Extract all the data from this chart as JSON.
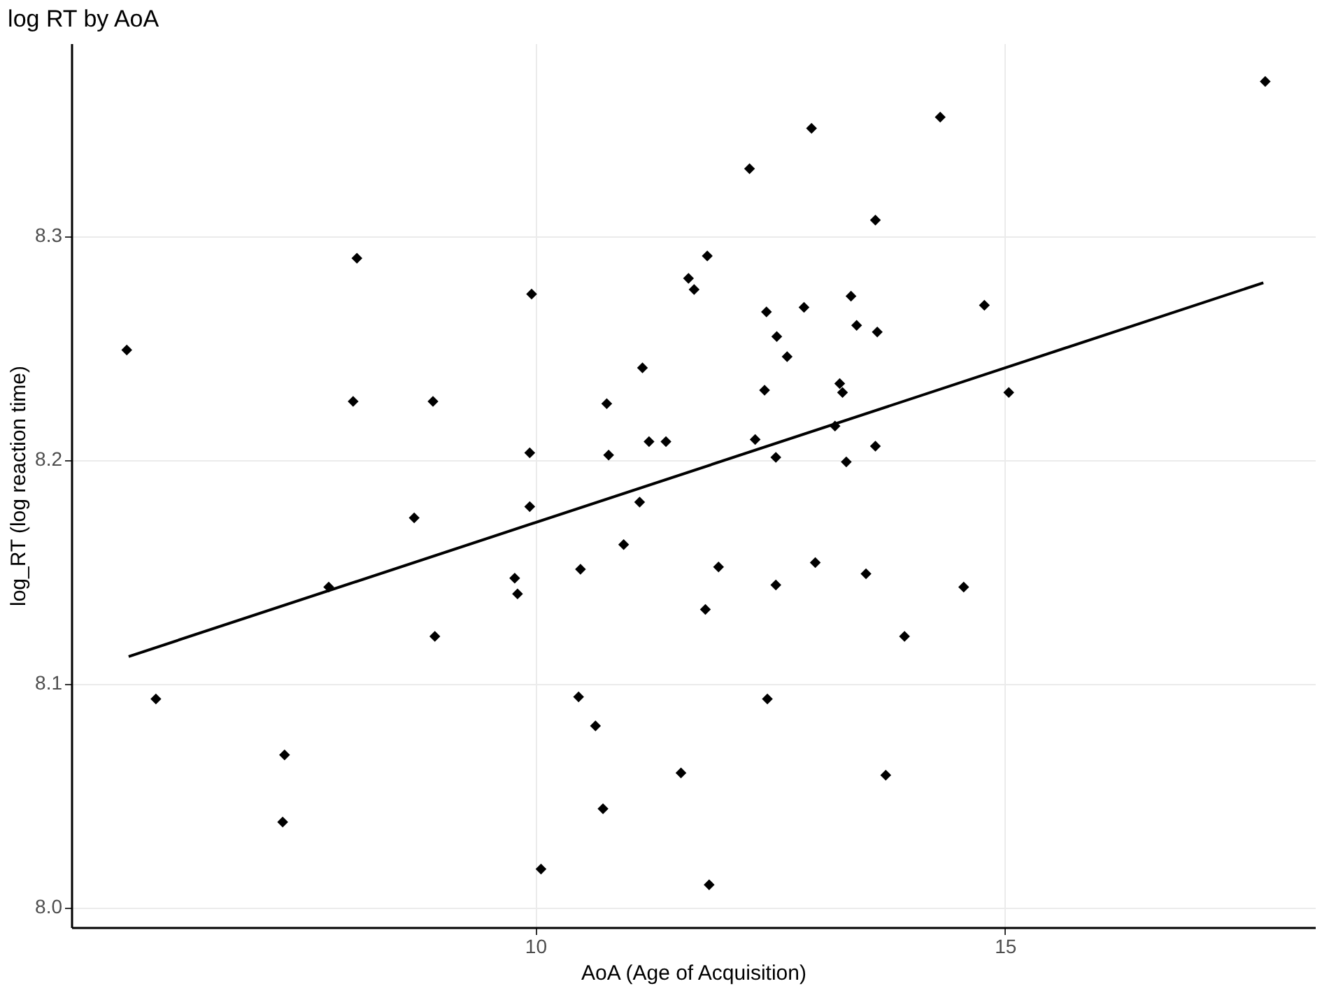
{
  "chart_data": {
    "type": "scatter",
    "title": "log RT by AoA",
    "xlabel": "AoA (Age of Acquisition)",
    "ylabel": "log_RT (log reaction time)",
    "xlim": [
      5.06,
      18.3
    ],
    "xticks": [
      10,
      15
    ],
    "ylim": [
      7.991,
      8.386
    ],
    "yticks": [
      {
        "value": 8.0,
        "label": "8.0"
      },
      8.1,
      8.2,
      8.3
    ],
    "grid": true,
    "series": [
      {
        "marker": "diamond",
        "color": "#000000",
        "x": [
          5.65,
          8.1,
          8.06,
          8.91,
          12.94,
          12.28,
          13.62,
          11.83,
          11.63,
          11.69,
          9.96,
          12.46,
          12.86,
          13.36,
          12.57,
          13.42,
          13.64,
          12.68,
          11.14,
          10.76,
          12.44,
          13.24,
          13.27,
          9.94,
          10.78,
          11.21,
          11.39,
          12.34,
          12.56,
          13.19,
          13.31,
          13.62,
          17.77,
          14.31,
          14.78,
          15.04,
          8.71,
          7.8,
          8.93,
          5.96,
          7.33,
          7.31,
          9.94,
          11.11,
          10.94,
          10.48,
          9.78,
          9.81,
          11.95,
          11.81,
          12.56,
          12.98,
          13.52,
          13.93,
          10.46,
          12.47,
          10.64,
          11.55,
          10.72,
          13.73,
          10.06,
          11.85,
          14.56
        ],
        "values": [
          8.249,
          8.29,
          8.226,
          8.226,
          8.348,
          8.33,
          8.307,
          8.291,
          8.281,
          8.276,
          8.274,
          8.266,
          8.268,
          8.273,
          8.255,
          8.26,
          8.257,
          8.246,
          8.241,
          8.225,
          8.231,
          8.234,
          8.23,
          8.203,
          8.202,
          8.208,
          8.208,
          8.209,
          8.201,
          8.215,
          8.199,
          8.206,
          8.369,
          8.353,
          8.269,
          8.23,
          8.174,
          8.143,
          8.121,
          8.093,
          8.068,
          8.038,
          8.179,
          8.181,
          8.162,
          8.151,
          8.147,
          8.14,
          8.152,
          8.133,
          8.144,
          8.154,
          8.149,
          8.121,
          8.094,
          8.093,
          8.081,
          8.06,
          8.044,
          8.059,
          8.017,
          8.01,
          8.143
        ]
      },
      {
        "type": "line",
        "line_style": "solid",
        "color": "#000000",
        "x": [
          5.67,
          17.75
        ],
        "values": [
          8.112,
          8.279
        ]
      }
    ]
  }
}
